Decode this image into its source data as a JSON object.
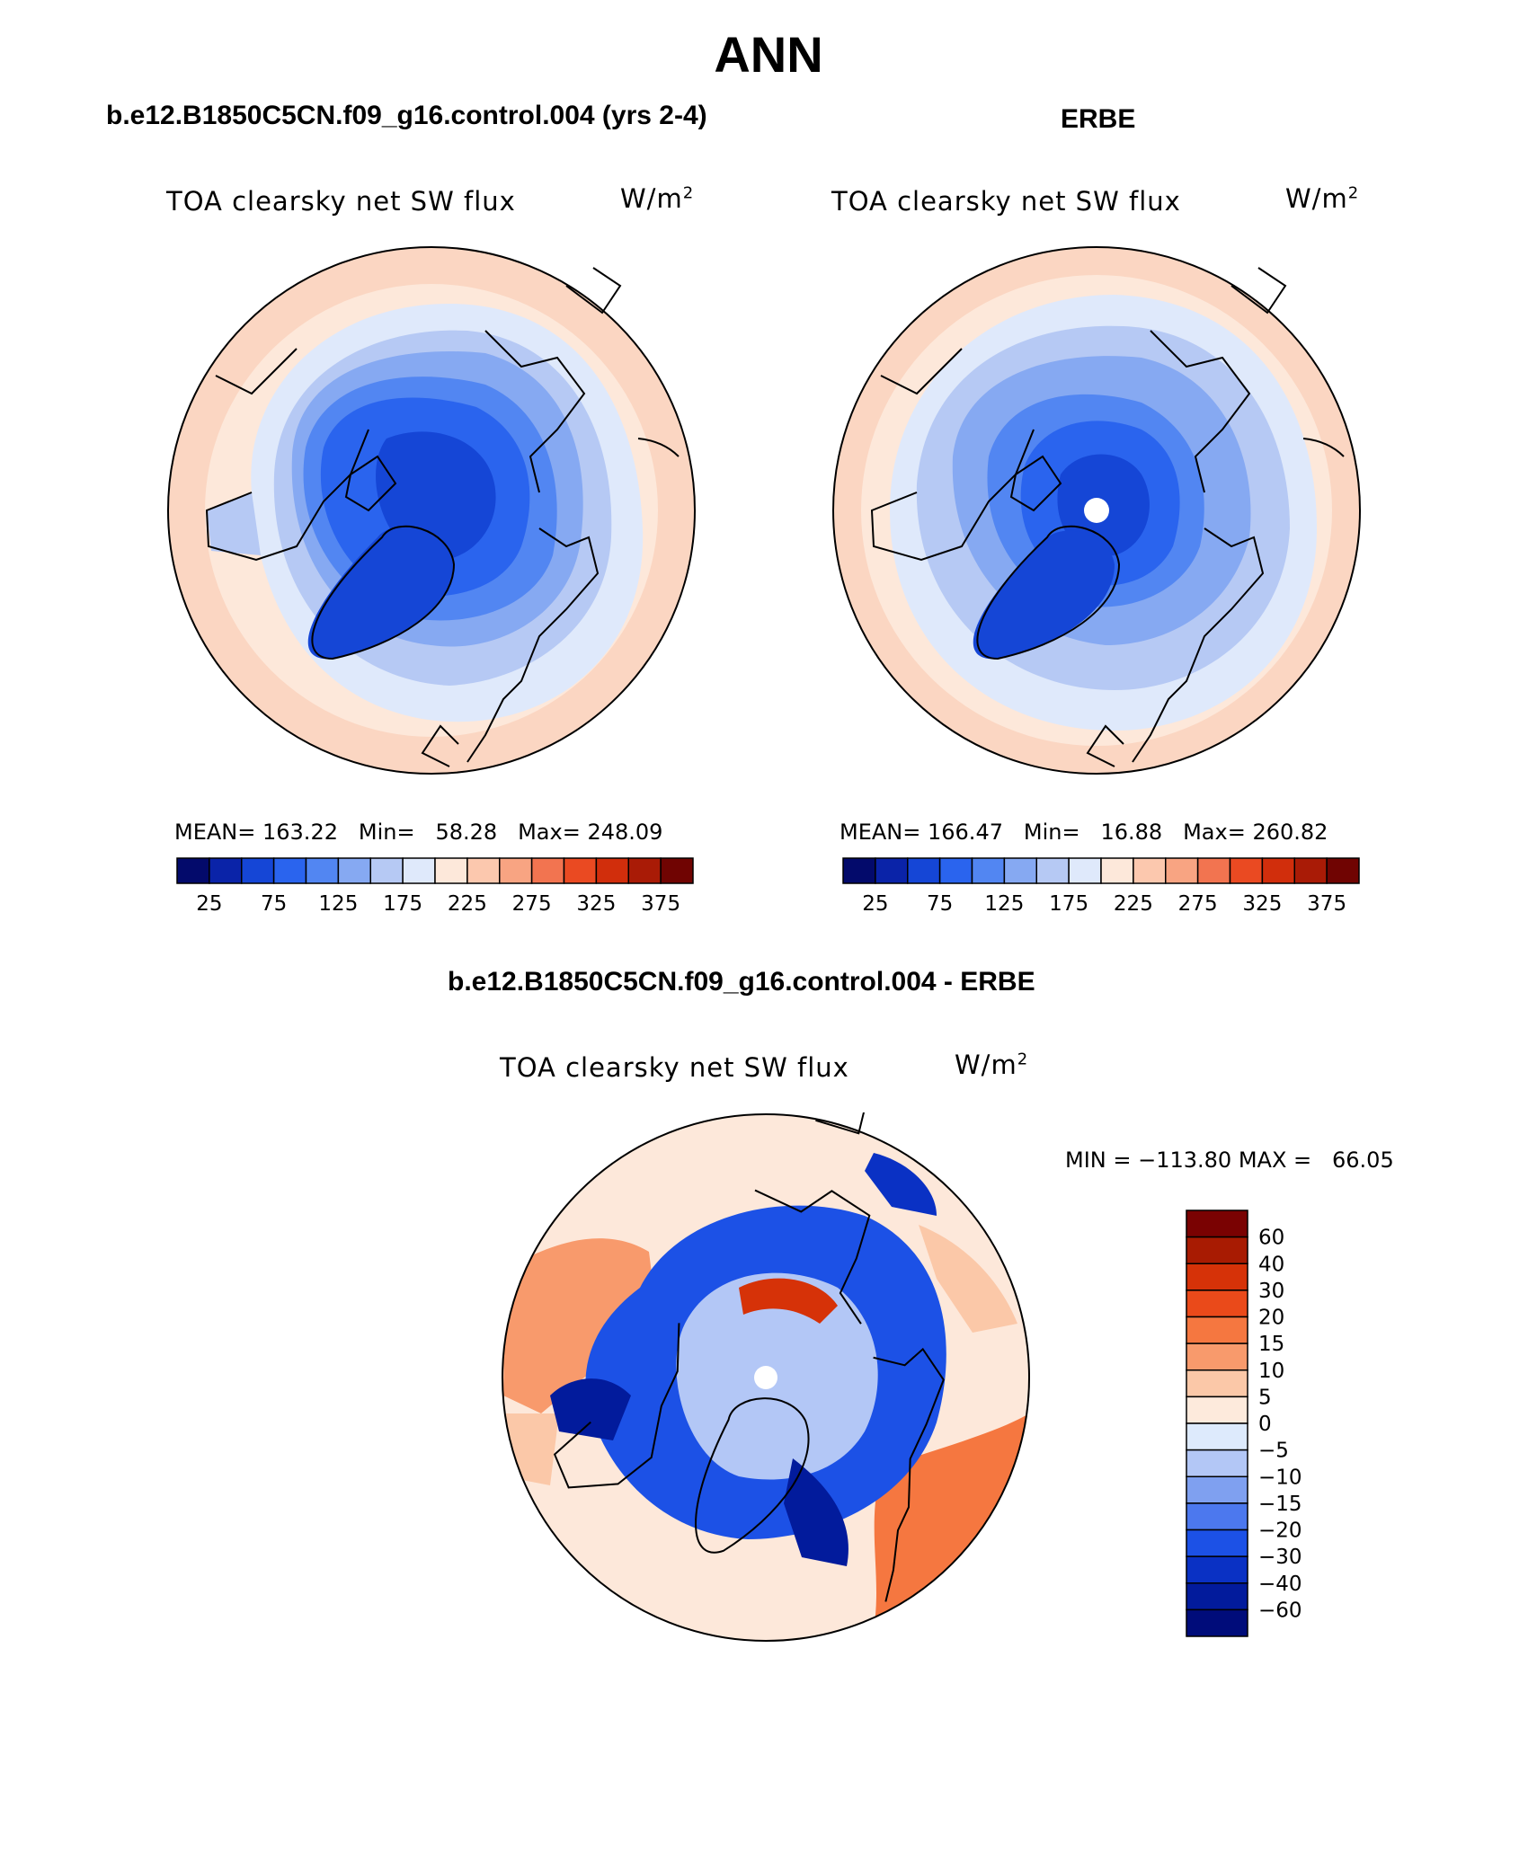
{
  "figure_title": "ANN",
  "panels": {
    "model": {
      "title": "b.e12.B1850C5CN.f09_g16.control.004 (yrs 2-4)",
      "variable": "TOA clearsky net SW flux",
      "units": "W/m",
      "units_exp": "2",
      "mean_label": "MEAN=",
      "mean": "163.22",
      "min_label": "Min=",
      "min": "58.28",
      "max_label": "Max=",
      "max": "248.09"
    },
    "obs": {
      "title": "ERBE",
      "variable": "TOA clearsky net SW flux",
      "units": "W/m",
      "units_exp": "2",
      "mean_label": "MEAN=",
      "mean": "166.47",
      "min_label": "Min=",
      "min": "16.88",
      "max_label": "Max=",
      "max": "260.82"
    },
    "diff": {
      "title": "b.e12.B1850C5CN.f09_g16.control.004 - ERBE",
      "variable": "TOA clearsky net SW flux",
      "units": "W/m",
      "units_exp": "2",
      "minmax_text": "MIN = −113.80 MAX =   66.05"
    }
  },
  "colorbars": {
    "absolute": {
      "colors": [
        "#030a6b",
        "#0a23a8",
        "#1546d6",
        "#2a64ee",
        "#5286f2",
        "#86a9f2",
        "#b6c9f4",
        "#dfe9fb",
        "#fde8da",
        "#fcc8ae",
        "#f8a482",
        "#f27450",
        "#ea4a22",
        "#d12e0c",
        "#a91b06",
        "#700402"
      ],
      "tick_labels": [
        "25",
        "75",
        "125",
        "175",
        "225",
        "275",
        "325",
        "375"
      ]
    },
    "difference": {
      "colors": [
        "#000c7a",
        "#021b9c",
        "#0a31c4",
        "#1c51e6",
        "#4c78ee",
        "#7fa0f0",
        "#b3c7f6",
        "#ddeafc",
        "#fdeadc",
        "#fbc8a8",
        "#f89a6c",
        "#f57740",
        "#ea4a1a",
        "#d63208",
        "#a81b02",
        "#7a0202"
      ],
      "tick_labels": [
        "60",
        "40",
        "30",
        "20",
        "15",
        "10",
        "5",
        "0",
        "−5",
        "−10",
        "−15",
        "−20",
        "−30",
        "−40",
        "−60"
      ]
    }
  }
}
